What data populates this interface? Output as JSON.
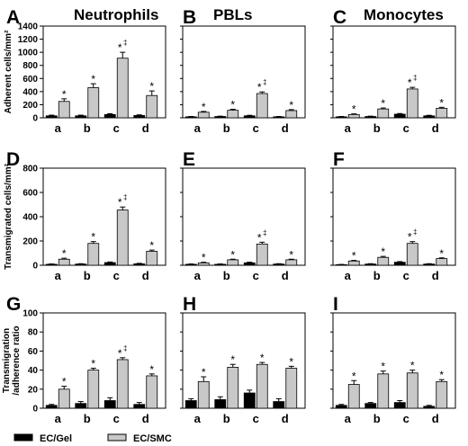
{
  "figure": {
    "legend": [
      {
        "label": "EC/Gel",
        "color": "#000000"
      },
      {
        "label": "EC/SMC",
        "color": "#c8c8c8"
      }
    ],
    "rows": [
      {
        "ylabel": [
          "Adherent cells/mm²"
        ],
        "ylim": [
          0,
          1400
        ],
        "ticks": [
          "0",
          "200",
          "400",
          "600",
          "800",
          "1000",
          "1200",
          "1400"
        ]
      },
      {
        "ylabel": [
          "Transmigrated cells/mm²"
        ],
        "ylim": [
          0,
          800
        ],
        "ticks": [
          "0",
          "200",
          "400",
          "600",
          "800"
        ]
      },
      {
        "ylabel": [
          "Transmigration",
          "/adherence ratio"
        ],
        "ylim": [
          0,
          100
        ],
        "ticks": [
          "0",
          "20",
          "40",
          "60",
          "80",
          "100"
        ]
      }
    ],
    "columns": [
      {
        "letters": [
          "A",
          "D",
          "G"
        ],
        "title": "Neutrophils"
      },
      {
        "letters": [
          "B",
          "E",
          "H"
        ],
        "title": "PBLs"
      },
      {
        "letters": [
          "C",
          "F",
          "I"
        ],
        "title": "Monocytes"
      }
    ]
  },
  "chart_data": [
    {
      "type": "bar",
      "panel": "A",
      "title": "Neutrophils",
      "ylabel": "Adherent cells/mm²",
      "ylim": [
        0,
        1400
      ],
      "categories": [
        "a",
        "b",
        "c",
        "d"
      ],
      "series": [
        {
          "name": "EC/Gel",
          "values": [
            30,
            30,
            50,
            35
          ],
          "errors": [
            10,
            10,
            12,
            10
          ]
        },
        {
          "name": "EC/SMC",
          "values": [
            250,
            460,
            910,
            340
          ],
          "errors": [
            40,
            60,
            90,
            70
          ]
        }
      ],
      "annotations": [
        "*",
        "*",
        "* ‡",
        "*"
      ]
    },
    {
      "type": "bar",
      "panel": "B",
      "title": "PBLs",
      "ylabel": "Adherent cells/mm²",
      "ylim": [
        0,
        1400
      ],
      "categories": [
        "a",
        "b",
        "c",
        "d"
      ],
      "series": [
        {
          "name": "EC/Gel",
          "values": [
            15,
            20,
            30,
            15
          ],
          "errors": [
            5,
            5,
            8,
            5
          ]
        },
        {
          "name": "EC/SMC",
          "values": [
            85,
            115,
            370,
            110
          ],
          "errors": [
            12,
            15,
            25,
            15
          ]
        }
      ],
      "annotations": [
        "*",
        "*",
        "* ‡",
        "*"
      ]
    },
    {
      "type": "bar",
      "panel": "C",
      "title": "Monocytes",
      "ylabel": "Adherent cells/mm²",
      "ylim": [
        0,
        1400
      ],
      "categories": [
        "a",
        "b",
        "c",
        "d"
      ],
      "series": [
        {
          "name": "EC/Gel",
          "values": [
            15,
            20,
            55,
            30
          ],
          "errors": [
            5,
            5,
            10,
            8
          ]
        },
        {
          "name": "EC/SMC",
          "values": [
            50,
            135,
            440,
            145
          ],
          "errors": [
            10,
            15,
            25,
            15
          ]
        }
      ],
      "annotations": [
        "*",
        "*",
        "* ‡",
        "*"
      ]
    },
    {
      "type": "bar",
      "panel": "D",
      "title": "",
      "ylabel": "Transmigrated cells/mm²",
      "ylim": [
        0,
        800
      ],
      "categories": [
        "a",
        "b",
        "c",
        "d"
      ],
      "series": [
        {
          "name": "EC/Gel",
          "values": [
            8,
            10,
            22,
            12
          ],
          "errors": [
            3,
            3,
            5,
            4
          ]
        },
        {
          "name": "EC/SMC",
          "values": [
            50,
            180,
            455,
            115
          ],
          "errors": [
            8,
            15,
            25,
            10
          ]
        }
      ],
      "annotations": [
        "*",
        "*",
        "* ‡",
        "*"
      ]
    },
    {
      "type": "bar",
      "panel": "E",
      "title": "",
      "ylabel": "Transmigrated cells/mm²",
      "ylim": [
        0,
        800
      ],
      "categories": [
        "a",
        "b",
        "c",
        "d"
      ],
      "series": [
        {
          "name": "EC/Gel",
          "values": [
            8,
            8,
            20,
            10
          ],
          "errors": [
            3,
            3,
            5,
            3
          ]
        },
        {
          "name": "EC/SMC",
          "values": [
            20,
            45,
            175,
            45
          ],
          "errors": [
            5,
            5,
            15,
            5
          ]
        }
      ],
      "annotations": [
        "*",
        "*",
        "* ‡",
        "*"
      ]
    },
    {
      "type": "bar",
      "panel": "F",
      "title": "",
      "ylabel": "Transmigrated cells/mm²",
      "ylim": [
        0,
        800
      ],
      "categories": [
        "a",
        "b",
        "c",
        "d"
      ],
      "series": [
        {
          "name": "EC/Gel",
          "values": [
            5,
            10,
            25,
            10
          ],
          "errors": [
            2,
            3,
            5,
            3
          ]
        },
        {
          "name": "EC/SMC",
          "values": [
            35,
            65,
            180,
            55
          ],
          "errors": [
            5,
            8,
            15,
            6
          ]
        }
      ],
      "annotations": [
        "*",
        "*",
        "* ‡",
        "*"
      ]
    },
    {
      "type": "bar",
      "panel": "G",
      "title": "",
      "ylabel": "Transmigration /adherence ratio",
      "ylim": [
        0,
        100
      ],
      "categories": [
        "a",
        "b",
        "c",
        "d"
      ],
      "series": [
        {
          "name": "EC/Gel",
          "values": [
            3,
            5,
            8,
            4
          ],
          "errors": [
            1,
            2,
            3,
            2
          ]
        },
        {
          "name": "EC/SMC",
          "values": [
            20,
            40,
            51,
            34
          ],
          "errors": [
            3,
            2,
            2,
            2
          ]
        }
      ],
      "annotations": [
        "*",
        "*",
        "* ‡",
        "*"
      ]
    },
    {
      "type": "bar",
      "panel": "H",
      "title": "",
      "ylabel": "Transmigration /adherence ratio",
      "ylim": [
        0,
        100
      ],
      "categories": [
        "a",
        "b",
        "c",
        "d"
      ],
      "series": [
        {
          "name": "EC/Gel",
          "values": [
            8,
            9,
            16,
            7
          ],
          "errors": [
            2,
            3,
            3,
            3
          ]
        },
        {
          "name": "EC/SMC",
          "values": [
            28,
            43,
            46,
            42
          ],
          "errors": [
            5,
            3,
            2,
            2
          ]
        }
      ],
      "annotations": [
        "*",
        "*",
        "*",
        "*"
      ]
    },
    {
      "type": "bar",
      "panel": "I",
      "title": "",
      "ylabel": "Transmigration /adherence ratio",
      "ylim": [
        0,
        100
      ],
      "categories": [
        "a",
        "b",
        "c",
        "d"
      ],
      "series": [
        {
          "name": "EC/Gel",
          "values": [
            3,
            5,
            6,
            2
          ],
          "errors": [
            1,
            1,
            2,
            1
          ]
        },
        {
          "name": "EC/SMC",
          "values": [
            25,
            36,
            37,
            28
          ],
          "errors": [
            4,
            3,
            3,
            2
          ]
        }
      ],
      "annotations": [
        "*",
        "*",
        "*",
        "*"
      ]
    }
  ]
}
